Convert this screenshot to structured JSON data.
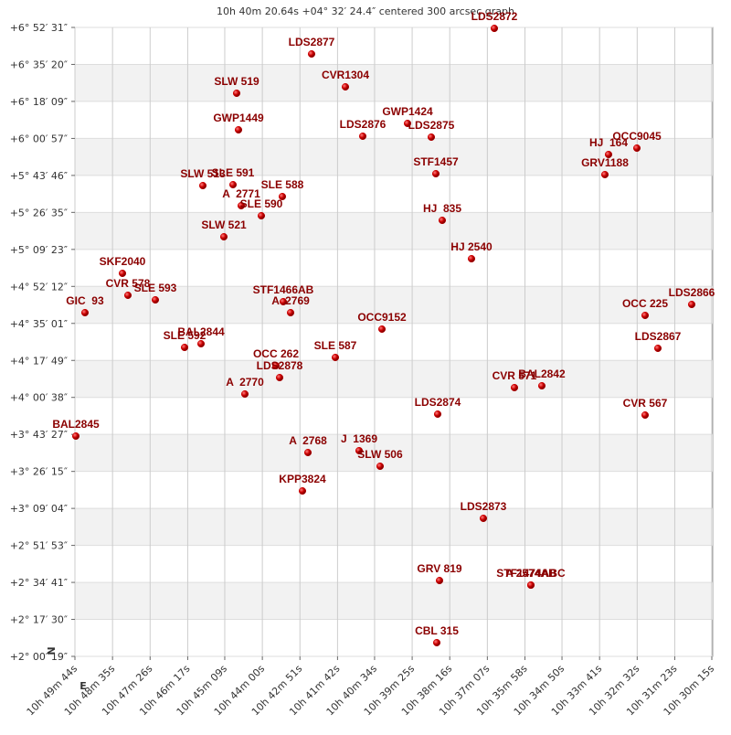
{
  "chart_data": {
    "type": "scatter",
    "title": "10h 40m 20.64s +04° 32′ 24.4″ centered 300 arcsec graph",
    "north_label": "N",
    "east_label": "E",
    "color": "#cc0000",
    "label_color": "#8b0000",
    "grid": true,
    "xlim": [
      10.82889,
      10.50417
    ],
    "ylim": [
      2.0053,
      6.8753
    ],
    "xticks": [
      {
        "value": 10.82889,
        "label": "10h 49m 44s"
      },
      {
        "value": 10.80972,
        "label": "10h 48m 35s"
      },
      {
        "value": 10.79056,
        "label": "10h 47m 26s"
      },
      {
        "value": 10.77139,
        "label": "10h 46m 17s"
      },
      {
        "value": 10.7525,
        "label": "10h 45m 09s"
      },
      {
        "value": 10.73333,
        "label": "10h 44m 00s"
      },
      {
        "value": 10.71417,
        "label": "10h 42m 51s"
      },
      {
        "value": 10.695,
        "label": "10h 41m 42s"
      },
      {
        "value": 10.67611,
        "label": "10h 40m 34s"
      },
      {
        "value": 10.65694,
        "label": "10h 39m 25s"
      },
      {
        "value": 10.63778,
        "label": "10h 38m 16s"
      },
      {
        "value": 10.61861,
        "label": "10h 37m 07s"
      },
      {
        "value": 10.59944,
        "label": "10h 35m 58s"
      },
      {
        "value": 10.58056,
        "label": "10h 34m 50s"
      },
      {
        "value": 10.56139,
        "label": "10h 33m 41s"
      },
      {
        "value": 10.54222,
        "label": "10h 32m 32s"
      },
      {
        "value": 10.52306,
        "label": "10h 31m 23s"
      },
      {
        "value": 10.50417,
        "label": "10h 30m 15s"
      }
    ],
    "yticks": [
      {
        "value": 2.0053,
        "label": "+2° 00′ 19″"
      },
      {
        "value": 2.2917,
        "label": "+2° 17′ 30″"
      },
      {
        "value": 2.5781,
        "label": "+2° 34′ 41″"
      },
      {
        "value": 2.8647,
        "label": "+2° 51′ 53″"
      },
      {
        "value": 3.1511,
        "label": "+3° 09′ 04″"
      },
      {
        "value": 3.4375,
        "label": "+3° 26′ 15″"
      },
      {
        "value": 3.7242,
        "label": "+3° 43′ 27″"
      },
      {
        "value": 4.0106,
        "label": "+4° 00′ 38″"
      },
      {
        "value": 4.2969,
        "label": "+4° 17′ 49″"
      },
      {
        "value": 4.5836,
        "label": "+4° 35′ 01″"
      },
      {
        "value": 4.87,
        "label": "+4° 52′ 12″"
      },
      {
        "value": 5.1564,
        "label": "+5° 09′ 23″"
      },
      {
        "value": 5.4431,
        "label": "+5° 26′ 35″"
      },
      {
        "value": 5.7294,
        "label": "+5° 43′ 46″"
      },
      {
        "value": 6.0158,
        "label": "+6° 00′ 57″"
      },
      {
        "value": 6.3025,
        "label": "+6° 18′ 09″"
      },
      {
        "value": 6.5889,
        "label": "+6° 35′ 20″"
      },
      {
        "value": 6.8753,
        "label": "+6° 52′ 31″"
      }
    ],
    "point_labels": [
      "LDS2872",
      "LDS2877",
      "CVR1304",
      "SLW 519",
      "GWP1449",
      "GWP1424",
      "LDS2876",
      "LDS2875",
      "HJ  164",
      "OCC9045",
      "GRV1188",
      "STF1457",
      "SLW 513",
      "SLE 591",
      "A  2771",
      "SLE 588",
      "SLE 590",
      "HJ  835",
      "SLW 521",
      "HJ 2540",
      "SKF2040",
      "CVR 578",
      "SLE 593",
      "GIC  93",
      "STF1466AB",
      "A  2769",
      "OCC 225",
      "LDS2866",
      "OCC9152",
      "BAL2844",
      "SLE 592",
      "LDS2867",
      "SLE 587",
      "OCC 262",
      "LDS2878",
      "A  2770",
      "CVR 571",
      "BAL2842",
      "LDS2874",
      "CVR 567",
      "BAL2845",
      "A  2768",
      "J  1369",
      "SLW 506",
      "KPP3824",
      "LDS2873",
      "GRV 819",
      "STF1474ABC",
      "A 2574AB",
      "CBL 315"
    ],
    "x": [
      10.61505,
      10.70823,
      10.69099,
      10.74643,
      10.7455,
      10.65931,
      10.68214,
      10.6472,
      10.55682,
      10.54237,
      10.55868,
      10.64487,
      10.76367,
      10.74829,
      10.7441,
      10.72314,
      10.73385,
      10.64161,
      10.75295,
      10.6267,
      10.80466,
      10.80187,
      10.78789,
      10.82377,
      10.72267,
      10.71894,
      10.53818,
      10.51442,
      10.67235,
      10.7646,
      10.77298,
      10.53166,
      10.69611,
      10.7264,
      10.72453,
      10.74224,
      10.6048,
      10.59083,
      10.64394,
      10.53818,
      10.82842,
      10.71009,
      10.684,
      10.67329,
      10.71289,
      10.62064,
      10.643,
      10.59642,
      10.59642,
      10.6444
    ],
    "values": [
      6.8682,
      6.67,
      6.4152,
      6.3657,
      6.0825,
      6.1321,
      6.033,
      6.0259,
      5.8914,
      5.9409,
      5.7357,
      5.7427,
      5.6507,
      5.6578,
      5.495,
      5.5658,
      5.4171,
      5.3817,
      5.2543,
      5.0844,
      4.9712,
      4.8013,
      4.7659,
      4.6668,
      4.7518,
      4.6668,
      4.6456,
      4.7305,
      4.5394,
      4.4261,
      4.3978,
      4.3908,
      4.32,
      4.2563,
      4.1642,
      4.0368,
      4.0864,
      4.1005,
      3.8811,
      3.874,
      3.7112,
      3.5838,
      3.598,
      3.4776,
      3.2865,
      3.0742,
      2.5928,
      2.5574,
      2.5574,
      2.1115
    ]
  }
}
